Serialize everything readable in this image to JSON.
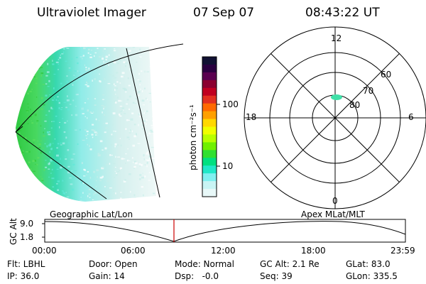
{
  "header": {
    "instrument": "Ultraviolet Imager",
    "date": "07 Sep 07",
    "time": "08:43:22 UT"
  },
  "colorbar": {
    "unit_label": "photon cm⁻²s⁻¹",
    "ticks": [
      "100",
      "10"
    ],
    "colors": [
      "#111133",
      "#2a0040",
      "#5a0050",
      "#8b0030",
      "#c00020",
      "#e23020",
      "#ff6a00",
      "#ffa000",
      "#ffd800",
      "#f0ff00",
      "#b8ff00",
      "#70f000",
      "#30e030",
      "#00e080",
      "#20e8c8",
      "#80f0f0",
      "#c8f4f4",
      "#e8f8f8"
    ]
  },
  "polar": {
    "mlt_labels": [
      "12",
      "6",
      "0",
      "18"
    ],
    "lat_labels": [
      "60",
      "70",
      "80"
    ]
  },
  "timeline": {
    "left_label": "Geographic Lat/Lon",
    "right_label": "Apex MLat/MLT",
    "axis_title": "GC Alt",
    "y_ticks": [
      "9.0",
      "1.8"
    ],
    "x_ticks": [
      "00:00",
      "06:00",
      "12:00",
      "18:00",
      "23:59"
    ]
  },
  "info": {
    "filter": "Flt: LBHL",
    "door": "Door: Open",
    "mode": "Mode: Normal",
    "gc_alt": "GC Alt: 2.1 Re",
    "glat": "GLat: 83.0",
    "ip": "IP: 36.0",
    "gain": "Gain: 14",
    "dsp": "Dsp:   -0.0",
    "seq": "Seq: 39",
    "glon": "GLon: 335.5"
  },
  "accent_colors": {
    "marker": "#cc0000",
    "aurora_green": "#40e040",
    "aurora_cyan": "#80f0ec"
  }
}
